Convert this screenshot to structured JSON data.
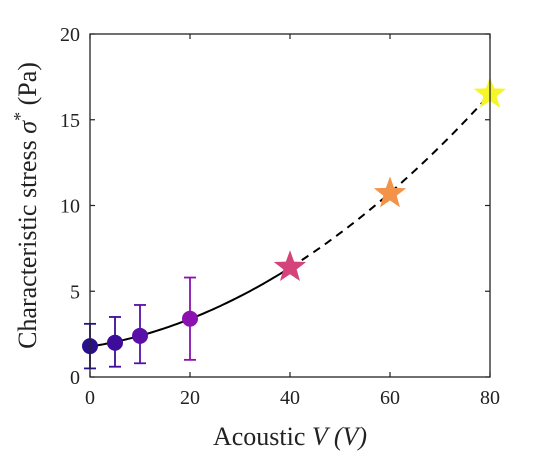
{
  "chart_data": {
    "type": "scatter",
    "xlabel_prefix": "Acoustic ",
    "xlabel_var": "V",
    "xlabel_unit": " (V)",
    "ylabel_prefix": "Characteristic stress ",
    "ylabel_var": "σ",
    "ylabel_sup": "*",
    "ylabel_unit": " (Pa)",
    "xlim": [
      0,
      80
    ],
    "ylim": [
      0,
      20
    ],
    "xticks": [
      0,
      20,
      40,
      60,
      80
    ],
    "yticks": [
      0,
      5,
      10,
      15,
      20
    ],
    "grid": false,
    "measured_points": [
      {
        "x": 0,
        "y": 1.8,
        "err_low": 0.5,
        "err_high": 3.1,
        "color": "#2a0f8c"
      },
      {
        "x": 5,
        "y": 2.0,
        "err_low": 0.6,
        "err_high": 3.5,
        "color": "#3d0c9a"
      },
      {
        "x": 10,
        "y": 2.4,
        "err_low": 0.8,
        "err_high": 4.2,
        "color": "#5a10a8"
      },
      {
        "x": 20,
        "y": 3.4,
        "err_low": 1.0,
        "err_high": 5.8,
        "color": "#8b12b0"
      }
    ],
    "star_points": [
      {
        "x": 40,
        "y": 6.4,
        "color": "#d4437a"
      },
      {
        "x": 60,
        "y": 10.7,
        "color": "#f39249"
      },
      {
        "x": 80,
        "y": 16.5,
        "color": "#f5f52a"
      }
    ],
    "fit_curve": {
      "solid_x_range": [
        0,
        40
      ],
      "dashed_x_range": [
        40,
        80
      ],
      "color": "#000000"
    }
  }
}
